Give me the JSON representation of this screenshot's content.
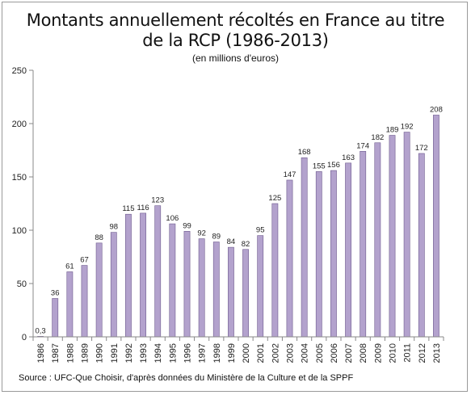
{
  "title_line1": "Montants annuellement récoltés en France au titre",
  "title_line2": "de la RCP (1986-2013)",
  "subtitle": "(en millions d'euros)",
  "source": "Source : UFC-Que Choisir, d'après données du Ministère de la Culture et de la SPPF",
  "colors": {
    "bar_fill": "#b3a2cd",
    "bar_stroke": "#6e5a8e",
    "axis": "#888888"
  },
  "chart_data": {
    "type": "bar",
    "categories": [
      "1986",
      "1987",
      "1988",
      "1989",
      "1990",
      "1991",
      "1992",
      "1993",
      "1994",
      "1995",
      "1996",
      "1997",
      "1998",
      "1999",
      "2000",
      "2001",
      "2002",
      "2003",
      "2004",
      "2005",
      "2006",
      "2007",
      "2008",
      "2009",
      "2010",
      "2011",
      "2012",
      "2013"
    ],
    "values": [
      0.3,
      36,
      61,
      67,
      88,
      98,
      115,
      116,
      123,
      106,
      99,
      92,
      89,
      84,
      82,
      95,
      125,
      147,
      168,
      155,
      156,
      163,
      174,
      182,
      189,
      192,
      172,
      208
    ],
    "data_labels": [
      "0,3",
      "36",
      "61",
      "67",
      "88",
      "98",
      "115",
      "116",
      "123",
      "106",
      "99",
      "92",
      "89",
      "84",
      "82",
      "95",
      "125",
      "147",
      "168",
      "155",
      "156",
      "163",
      "174",
      "182",
      "189",
      "192",
      "172",
      "208"
    ],
    "ylim": [
      0,
      250
    ],
    "yticks": [
      0,
      50,
      100,
      150,
      200,
      250
    ],
    "grid": false,
    "legend": "none"
  }
}
